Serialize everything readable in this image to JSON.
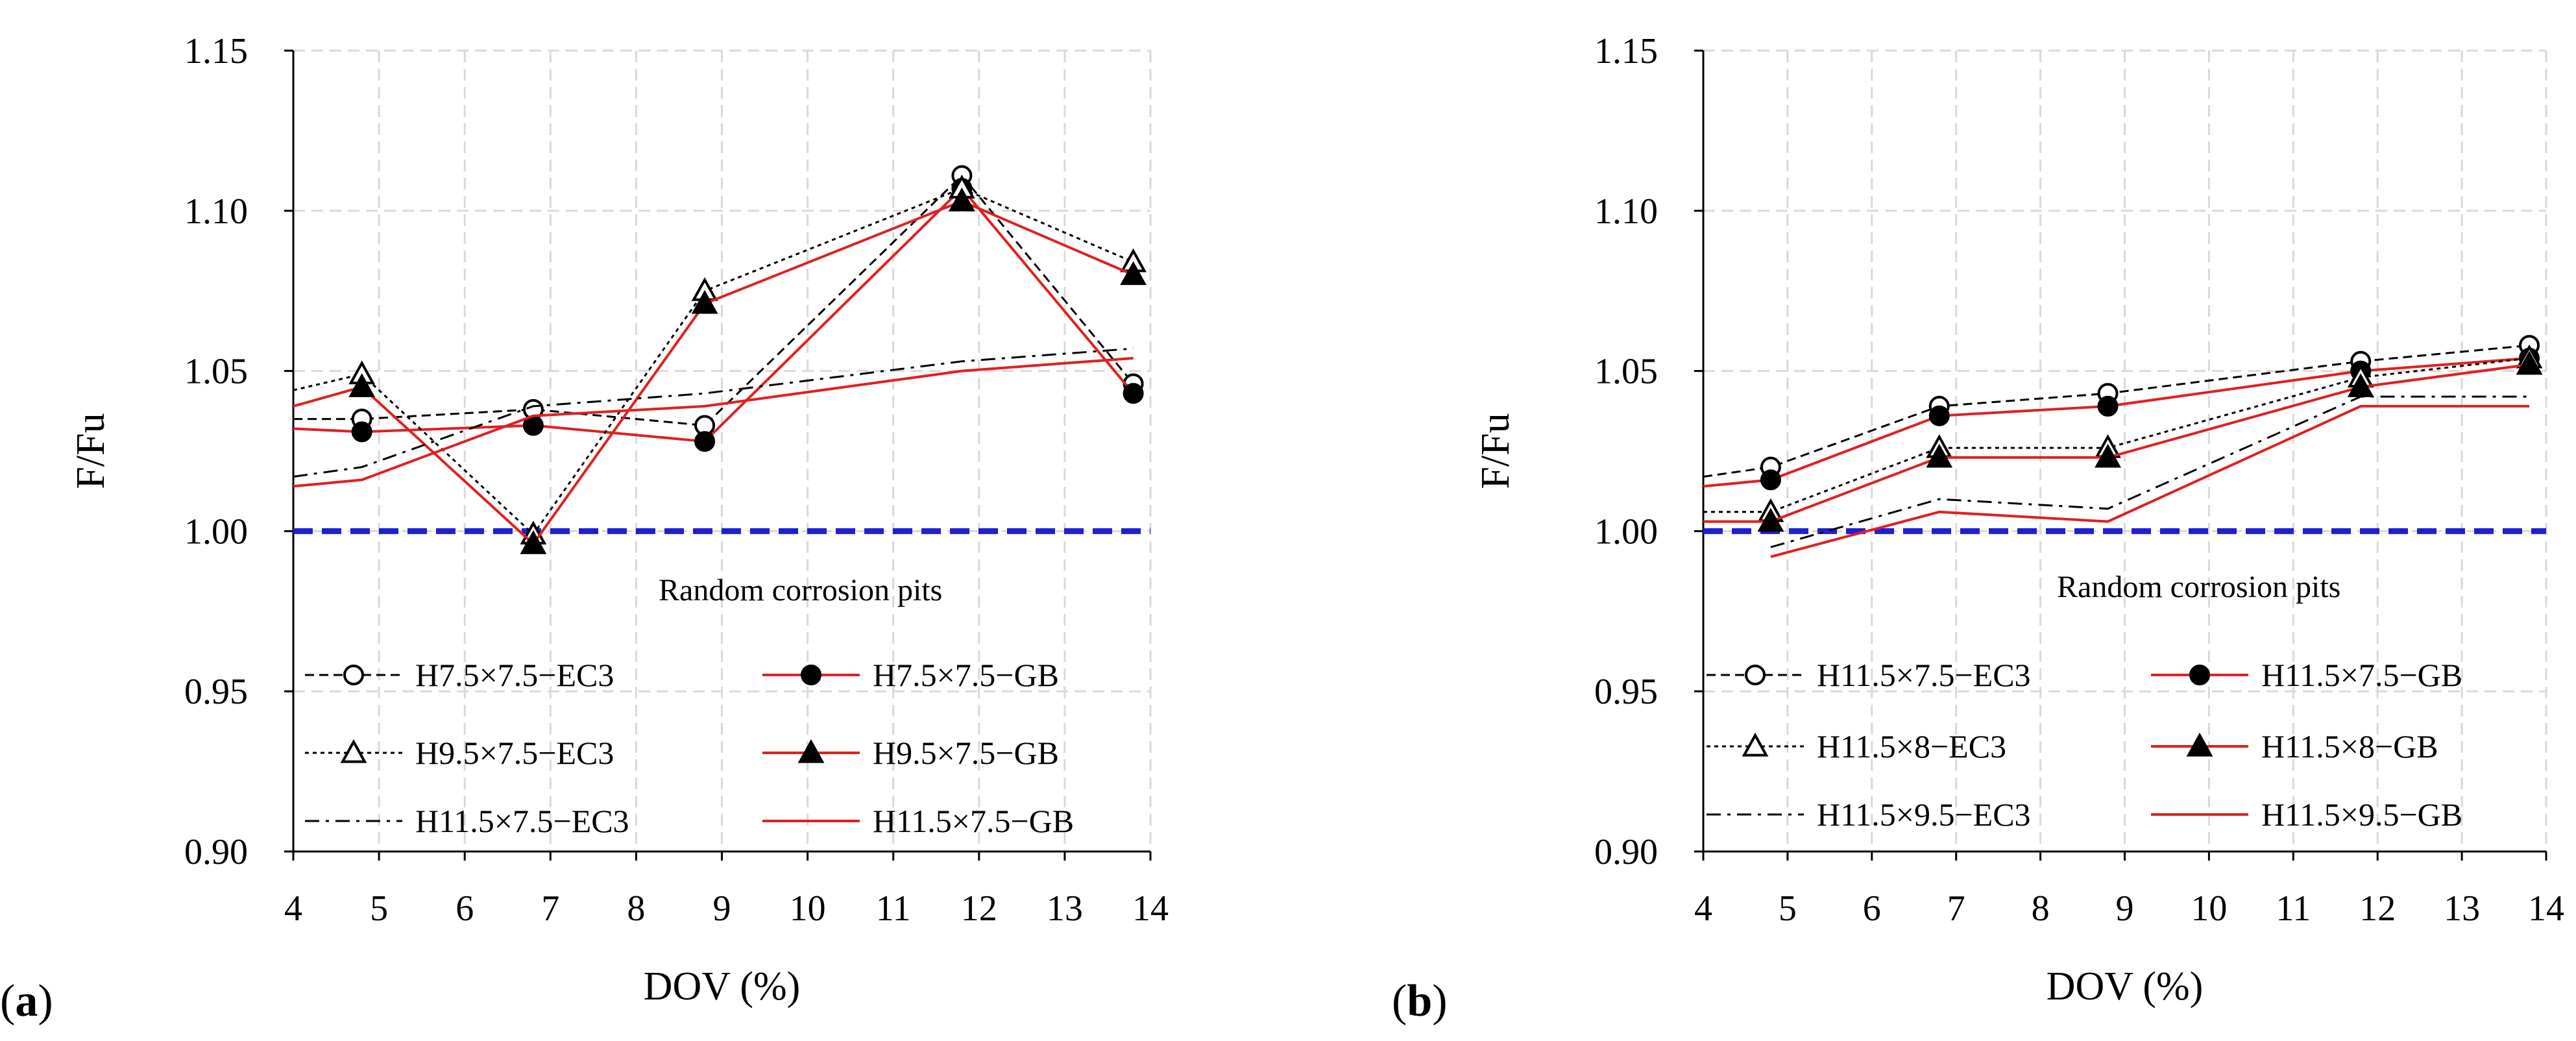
{
  "chart_data": [
    {
      "type": "line",
      "panel_label": "(a)",
      "title": "",
      "xlabel": "DOV (%)",
      "ylabel": "F/Fu",
      "xlim": [
        4,
        14
      ],
      "ylim": [
        0.9,
        1.15
      ],
      "x_ticks": [
        "4",
        "5",
        "6",
        "7",
        "8",
        "9",
        "10",
        "11",
        "12",
        "13",
        "14"
      ],
      "y_ticks": [
        "0.90",
        "0.95",
        "1.00",
        "1.05",
        "1.10",
        "1.15"
      ],
      "grid": true,
      "reference_line": {
        "y": 1.0,
        "color": "#1f1fd1"
      },
      "annotation": "Random corrosion pits",
      "series": [
        {
          "name": "H7.5×7.5−EC3",
          "x": [
            4,
            4.8,
            6.8,
            8.8,
            11.8,
            13.8
          ],
          "y": [
            1.035,
            1.035,
            1.038,
            1.033,
            1.111,
            1.046
          ],
          "color": "#000000",
          "line": "dashed",
          "marker": "open-circle"
        },
        {
          "name": "H7.5×7.5−GB",
          "x": [
            4,
            4.8,
            6.8,
            8.8,
            11.8,
            13.8
          ],
          "y": [
            1.032,
            1.031,
            1.033,
            1.028,
            1.107,
            1.043
          ],
          "color": "#e02020",
          "line": "solid",
          "marker": "filled-circle"
        },
        {
          "name": "H9.5×7.5−EC3",
          "x": [
            4,
            4.8,
            6.8,
            8.8,
            11.8,
            13.8
          ],
          "y": [
            1.044,
            1.049,
            0.999,
            1.075,
            1.107,
            1.084
          ],
          "color": "#000000",
          "line": "dotted",
          "marker": "open-triangle"
        },
        {
          "name": "H9.5×7.5−GB",
          "x": [
            4,
            4.8,
            6.8,
            8.8,
            11.8,
            13.8
          ],
          "y": [
            1.039,
            1.045,
            0.996,
            1.071,
            1.103,
            1.08
          ],
          "color": "#e02020",
          "line": "solid",
          "marker": "filled-triangle"
        },
        {
          "name": "H11.5×7.5−EC3",
          "x": [
            4,
            4.8,
            6.8,
            8.8,
            11.8,
            13.8
          ],
          "y": [
            1.017,
            1.02,
            1.039,
            1.043,
            1.053,
            1.057
          ],
          "color": "#000000",
          "line": "dashdot",
          "marker": "none"
        },
        {
          "name": "H11.5×7.5−GB",
          "x": [
            4,
            4.8,
            6.8,
            8.8,
            11.8,
            13.8
          ],
          "y": [
            1.014,
            1.016,
            1.036,
            1.039,
            1.05,
            1.054
          ],
          "color": "#e02020",
          "line": "solid",
          "marker": "none"
        }
      ]
    },
    {
      "type": "line",
      "panel_label": "(b)",
      "title": "",
      "xlabel": "DOV (%)",
      "ylabel": "F/Fu",
      "xlim": [
        4,
        14
      ],
      "ylim": [
        0.9,
        1.15
      ],
      "x_ticks": [
        "4",
        "5",
        "6",
        "7",
        "8",
        "9",
        "10",
        "11",
        "12",
        "13",
        "14"
      ],
      "y_ticks": [
        "0.90",
        "0.95",
        "1.00",
        "1.05",
        "1.10",
        "1.15"
      ],
      "grid": true,
      "reference_line": {
        "y": 1.0,
        "color": "#1f1fd1"
      },
      "annotation": "Random corrosion pits",
      "series": [
        {
          "name": "H11.5×7.5−EC3",
          "x": [
            4,
            4.8,
            6.8,
            8.8,
            11.8,
            13.8
          ],
          "y": [
            1.017,
            1.02,
            1.039,
            1.043,
            1.053,
            1.058
          ],
          "color": "#000000",
          "line": "dashed",
          "marker": "open-circle"
        },
        {
          "name": "H11.5×7.5−GB",
          "x": [
            4,
            4.8,
            6.8,
            8.8,
            11.8,
            13.8
          ],
          "y": [
            1.014,
            1.016,
            1.036,
            1.039,
            1.05,
            1.054
          ],
          "color": "#e02020",
          "line": "solid",
          "marker": "filled-circle"
        },
        {
          "name": "H11.5×8−EC3",
          "x": [
            4,
            4.8,
            6.8,
            8.8,
            11.8,
            13.8
          ],
          "y": [
            1.006,
            1.006,
            1.026,
            1.026,
            1.048,
            1.054
          ],
          "color": "#000000",
          "line": "dotted",
          "marker": "open-triangle"
        },
        {
          "name": "H11.5×8−GB",
          "x": [
            4,
            4.8,
            6.8,
            8.8,
            11.8,
            13.8
          ],
          "y": [
            1.003,
            1.003,
            1.023,
            1.023,
            1.045,
            1.052
          ],
          "color": "#e02020",
          "line": "solid",
          "marker": "filled-triangle"
        },
        {
          "name": "H11.5×9.5−EC3",
          "x": [
            4.8,
            6.8,
            8.8,
            11.8,
            13.8
          ],
          "y": [
            0.995,
            1.01,
            1.007,
            1.042,
            1.042
          ],
          "color": "#000000",
          "line": "dashdot",
          "marker": "none"
        },
        {
          "name": "H11.5×9.5−GB",
          "x": [
            4.8,
            6.8,
            8.8,
            11.8,
            13.8
          ],
          "y": [
            0.992,
            1.006,
            1.003,
            1.039,
            1.039
          ],
          "color": "#e02020",
          "line": "solid",
          "marker": "none"
        }
      ]
    }
  ]
}
